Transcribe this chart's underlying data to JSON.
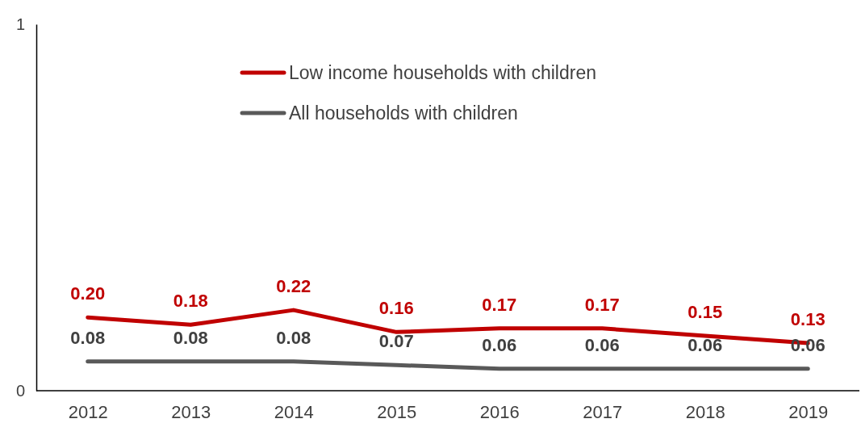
{
  "chart_data": {
    "type": "line",
    "categories": [
      "2012",
      "2013",
      "2014",
      "2015",
      "2016",
      "2017",
      "2018",
      "2019"
    ],
    "series": [
      {
        "name": "Low income households with children",
        "color": "#c00000",
        "values": [
          0.2,
          0.18,
          0.22,
          0.16,
          0.17,
          0.17,
          0.15,
          0.13
        ],
        "value_labels": [
          "0.20",
          "0.18",
          "0.22",
          "0.16",
          "0.17",
          "0.17",
          "0.15",
          "0.13"
        ]
      },
      {
        "name": "All households with children",
        "color": "#595959",
        "values": [
          0.08,
          0.08,
          0.08,
          0.07,
          0.06,
          0.06,
          0.06,
          0.06
        ],
        "value_labels": [
          "0.08",
          "0.08",
          "0.08",
          "0.07",
          "0.06",
          "0.06",
          "0.06",
          "0.06"
        ]
      }
    ],
    "ylim": [
      0,
      1
    ],
    "yticks": [
      0,
      1
    ],
    "grid": false,
    "legend": "top",
    "marker": "none",
    "line_style": "solid"
  }
}
